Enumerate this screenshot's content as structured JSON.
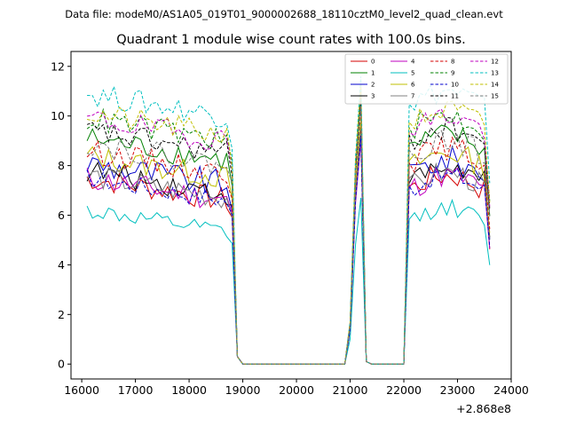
{
  "figure": {
    "header": "Data file: modeM0/AS1A05_019T01_9000002688_18110cztM0_level2_quad_clean.evt"
  },
  "chart_data": {
    "type": "line",
    "title": "Quadrant 1 module wise count rates with 100.0s bins.",
    "xlabel": "",
    "ylabel": "",
    "x_offset_label": "+2.868e8",
    "xlim": [
      15800,
      24000
    ],
    "ylim": [
      -0.6,
      12.6
    ],
    "x_ticks": [
      16000,
      17000,
      18000,
      19000,
      20000,
      21000,
      22000,
      23000,
      24000
    ],
    "y_ticks": [
      0,
      2,
      4,
      6,
      8,
      10,
      12
    ],
    "grid": false,
    "legend_position": "top-right",
    "segments_note": "Counts drop to 0 between ~19000-20900 and ~21350-22000",
    "series": [
      {
        "name": "0",
        "color": "#d40000",
        "dash": "solid",
        "level": 7.0,
        "spread": 0.5,
        "peak": 9.4
      },
      {
        "name": "1",
        "color": "#008000",
        "dash": "solid",
        "level": 8.6,
        "spread": 0.5,
        "peak": 10.8
      },
      {
        "name": "2",
        "color": "#0000cc",
        "dash": "solid",
        "level": 7.6,
        "spread": 0.6,
        "peak": 9.8
      },
      {
        "name": "3",
        "color": "#000000",
        "dash": "solid",
        "level": 7.3,
        "spread": 0.5,
        "peak": 9.3
      },
      {
        "name": "4",
        "color": "#bf00bf",
        "dash": "solid",
        "level": 7.0,
        "spread": 0.5,
        "peak": 9.0
      },
      {
        "name": "5",
        "color": "#00bfbf",
        "dash": "solid",
        "level": 5.7,
        "spread": 0.35,
        "peak": 6.7
      },
      {
        "name": "6",
        "color": "#bfbf00",
        "dash": "solid",
        "level": 7.9,
        "spread": 0.5,
        "peak": 9.9
      },
      {
        "name": "7",
        "color": "#808080",
        "dash": "solid",
        "level": 7.1,
        "spread": 0.5,
        "peak": 9.3
      },
      {
        "name": "8",
        "color": "#d40000",
        "dash": "dashed",
        "level": 8.1,
        "spread": 0.5,
        "peak": 10.3
      },
      {
        "name": "9",
        "color": "#008000",
        "dash": "dashed",
        "level": 9.4,
        "spread": 0.5,
        "peak": 11.0
      },
      {
        "name": "10",
        "color": "#0000cc",
        "dash": "dashed",
        "level": 7.0,
        "spread": 0.4,
        "peak": 9.2
      },
      {
        "name": "11",
        "color": "#000000",
        "dash": "dashed",
        "level": 8.9,
        "spread": 0.5,
        "peak": 10.6
      },
      {
        "name": "12",
        "color": "#bf00bf",
        "dash": "dashed",
        "level": 9.4,
        "spread": 0.5,
        "peak": 11.2
      },
      {
        "name": "13",
        "color": "#00bfbf",
        "dash": "dashed",
        "level": 10.4,
        "spread": 0.5,
        "peak": 11.6
      },
      {
        "name": "14",
        "color": "#bfbf00",
        "dash": "dashed",
        "level": 9.6,
        "spread": 0.5,
        "peak": 11.3
      },
      {
        "name": "15",
        "color": "#808080",
        "dash": "dashed",
        "level": 8.4,
        "spread": 0.5,
        "peak": 10.4
      }
    ]
  }
}
